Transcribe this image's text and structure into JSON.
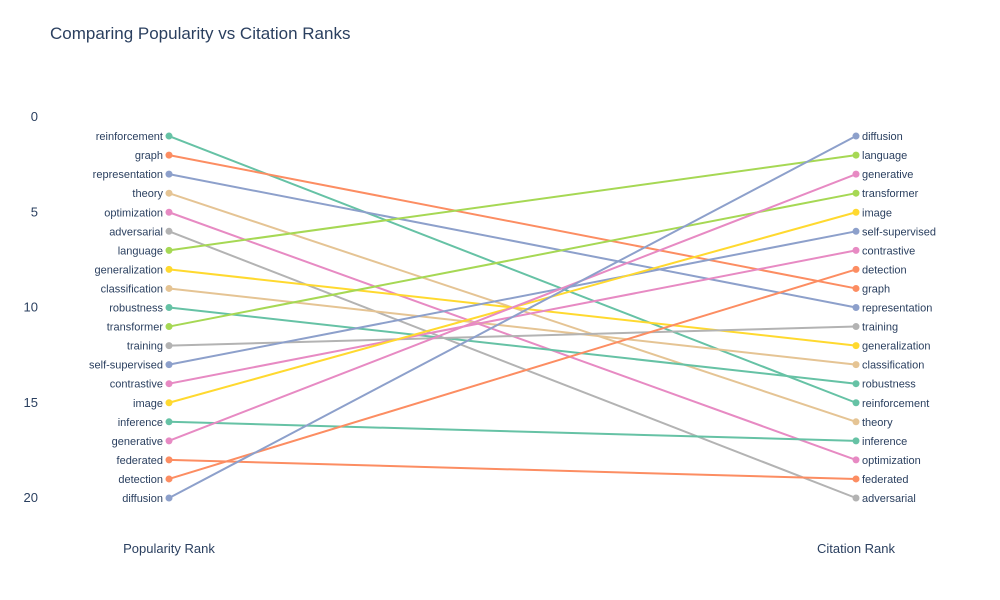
{
  "chart_data": {
    "type": "line",
    "title": "Comparing Popularity vs Citation Ranks",
    "categories": [
      "Popularity Rank",
      "Citation Rank"
    ],
    "y_axis": {
      "ticks": [
        0,
        5,
        10,
        15,
        20
      ],
      "range": [
        0,
        21
      ],
      "reversed": true
    },
    "grid": false,
    "series": [
      {
        "name": "reinforcement",
        "values": [
          1,
          15
        ],
        "color": "#66c2a5"
      },
      {
        "name": "graph",
        "values": [
          2,
          9
        ],
        "color": "#fc8d62"
      },
      {
        "name": "representation",
        "values": [
          3,
          10
        ],
        "color": "#8da0cb"
      },
      {
        "name": "theory",
        "values": [
          4,
          16
        ],
        "color": "#e5c494"
      },
      {
        "name": "optimization",
        "values": [
          5,
          18
        ],
        "color": "#e78ac3"
      },
      {
        "name": "adversarial",
        "values": [
          6,
          20
        ],
        "color": "#b3b3b3"
      },
      {
        "name": "language",
        "values": [
          7,
          2
        ],
        "color": "#a6d854"
      },
      {
        "name": "generalization",
        "values": [
          8,
          12
        ],
        "color": "#ffd92f"
      },
      {
        "name": "classification",
        "values": [
          9,
          13
        ],
        "color": "#e5c494"
      },
      {
        "name": "robustness",
        "values": [
          10,
          14
        ],
        "color": "#66c2a5"
      },
      {
        "name": "transformer",
        "values": [
          11,
          4
        ],
        "color": "#a6d854"
      },
      {
        "name": "training",
        "values": [
          12,
          11
        ],
        "color": "#b3b3b3"
      },
      {
        "name": "self-supervised",
        "values": [
          13,
          6
        ],
        "color": "#8da0cb"
      },
      {
        "name": "contrastive",
        "values": [
          14,
          7
        ],
        "color": "#e78ac3"
      },
      {
        "name": "image",
        "values": [
          15,
          5
        ],
        "color": "#ffd92f"
      },
      {
        "name": "inference",
        "values": [
          16,
          17
        ],
        "color": "#66c2a5"
      },
      {
        "name": "generative",
        "values": [
          17,
          3
        ],
        "color": "#e78ac3"
      },
      {
        "name": "federated",
        "values": [
          18,
          19
        ],
        "color": "#fc8d62"
      },
      {
        "name": "detection",
        "values": [
          19,
          8
        ],
        "color": "#fc8d62"
      },
      {
        "name": "diffusion",
        "values": [
          20,
          1
        ],
        "color": "#8da0cb"
      }
    ]
  }
}
